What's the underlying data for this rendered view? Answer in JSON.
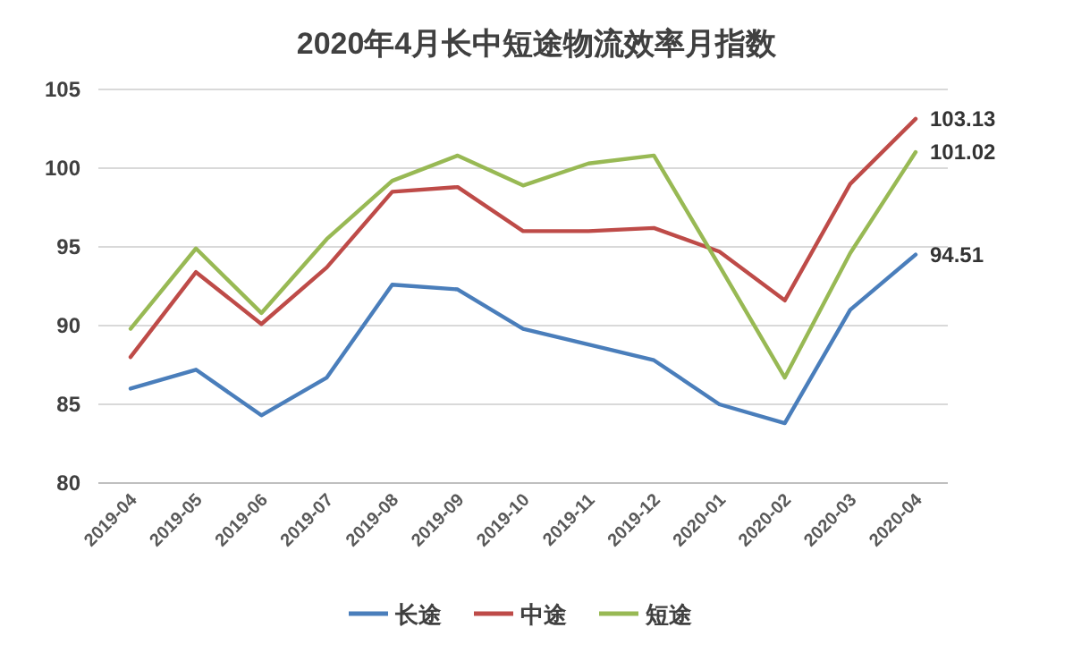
{
  "chart_data": {
    "type": "line",
    "title": "2020年4月长中短途物流效率月指数",
    "categories": [
      "2019-04",
      "2019-05",
      "2019-06",
      "2019-07",
      "2019-08",
      "2019-09",
      "2019-10",
      "2019-11",
      "2019-12",
      "2020-01",
      "2020-02",
      "2020-03",
      "2020-04"
    ],
    "series": [
      {
        "name": "长途",
        "color": "#4a7ebb",
        "values": [
          86.0,
          87.2,
          84.3,
          86.7,
          92.6,
          92.3,
          89.8,
          88.8,
          87.8,
          85.0,
          83.8,
          91.0,
          94.51
        ],
        "value_labels": [
          null,
          null,
          null,
          null,
          null,
          null,
          null,
          null,
          null,
          null,
          null,
          null,
          "94.51"
        ]
      },
      {
        "name": "中途",
        "color": "#be4b48",
        "values": [
          88.0,
          93.4,
          90.1,
          93.7,
          98.5,
          98.8,
          96.0,
          96.0,
          96.2,
          94.7,
          91.6,
          99.0,
          103.13
        ],
        "value_labels": [
          null,
          null,
          null,
          null,
          null,
          null,
          null,
          null,
          null,
          null,
          null,
          null,
          "103.13"
        ]
      },
      {
        "name": "短途",
        "color": "#98b954",
        "values": [
          89.8,
          94.9,
          90.8,
          95.5,
          99.2,
          100.8,
          98.9,
          100.3,
          100.8,
          93.8,
          86.7,
          94.6,
          101.02
        ],
        "value_labels": [
          null,
          null,
          null,
          null,
          null,
          null,
          null,
          null,
          null,
          null,
          null,
          null,
          "101.02"
        ]
      }
    ],
    "ylim": [
      80,
      105
    ],
    "yticks": [
      80,
      85,
      90,
      95,
      100,
      105
    ],
    "grid": "y",
    "legend": "bottom",
    "marker": "none",
    "line_style": "solid"
  }
}
